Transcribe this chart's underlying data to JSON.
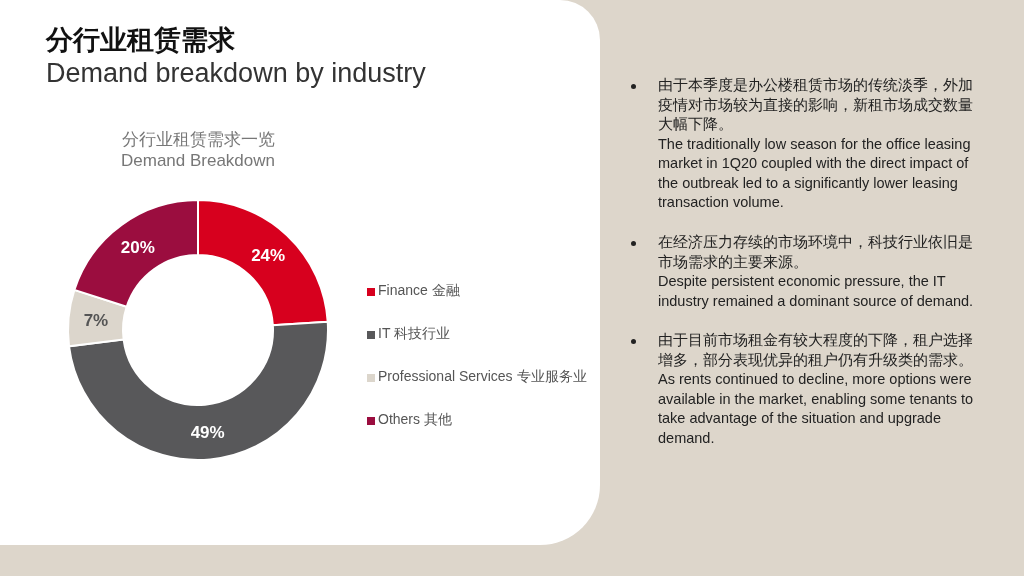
{
  "chart_data": [
    {
      "type": "other",
      "title": "分行业租赁需求",
      "subtitle": "Demand breakdown by industry",
      "annotations": [
        "由于本季度是办公楼租赁市场的传统淡季，外加疫情对市场较为直接的影响，新租市场成交数量大幅下降。\nThe traditionally low season for the office leasing market in 1Q20 coupled with the direct impact of the outbreak led to a significantly lower leasing transaction volume.",
        "在经济压力存续的市场环境中，科技行业依旧是市场需求的主要来源。\nDespite persistent economic pressure, the IT industry remained a dominant source of demand.",
        "由于目前市场租金有较大程度的下降，租户选择增多，部分表现优异的租户仍有升级类的需求。\nAs rents continued to decline, more options were available in the market, enabling some tenants to take advantage of the situation and upgrade demand."
      ]
    },
    {
      "type": "donut",
      "title": "分行业租赁需求一览",
      "subtitle": "Demand Breakdown",
      "categories": [
        "Finance 金融",
        "IT 科技行业",
        "Professional Services 专业服务业",
        "Others 其他"
      ],
      "values": [
        24,
        49,
        7,
        20
      ],
      "colors": [
        "#d7001e",
        "#58585a",
        "#dcd6cc",
        "#9b0d3f"
      ],
      "value_labels": [
        "24%",
        "49%",
        "7%",
        "20%"
      ],
      "legend": "right"
    }
  ]
}
